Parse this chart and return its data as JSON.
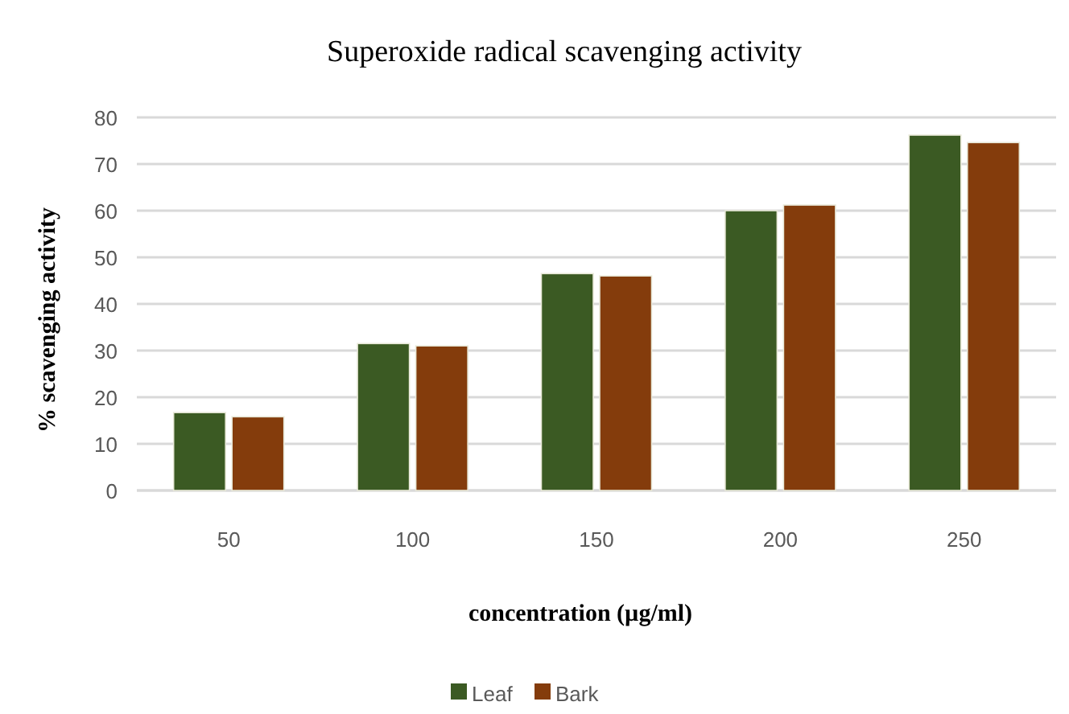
{
  "chart_data": {
    "type": "bar",
    "title": "Superoxide radical scavenging activity",
    "xlabel": "concentration (µg/ml)",
    "ylabel": "% scavenging activity",
    "categories": [
      "50",
      "100",
      "150",
      "200",
      "250"
    ],
    "series": [
      {
        "name": "Leaf",
        "color": "#3b5a23",
        "values": [
          16.7,
          31.5,
          46.5,
          60,
          76.2
        ]
      },
      {
        "name": "Bark",
        "color": "#843c0c",
        "values": [
          15.8,
          31,
          46,
          61.2,
          74.6
        ]
      }
    ],
    "ylim": [
      0,
      80
    ],
    "yticks": [
      0,
      10,
      20,
      30,
      40,
      50,
      60,
      70,
      80
    ],
    "grid": "y",
    "legend": "bottom"
  }
}
